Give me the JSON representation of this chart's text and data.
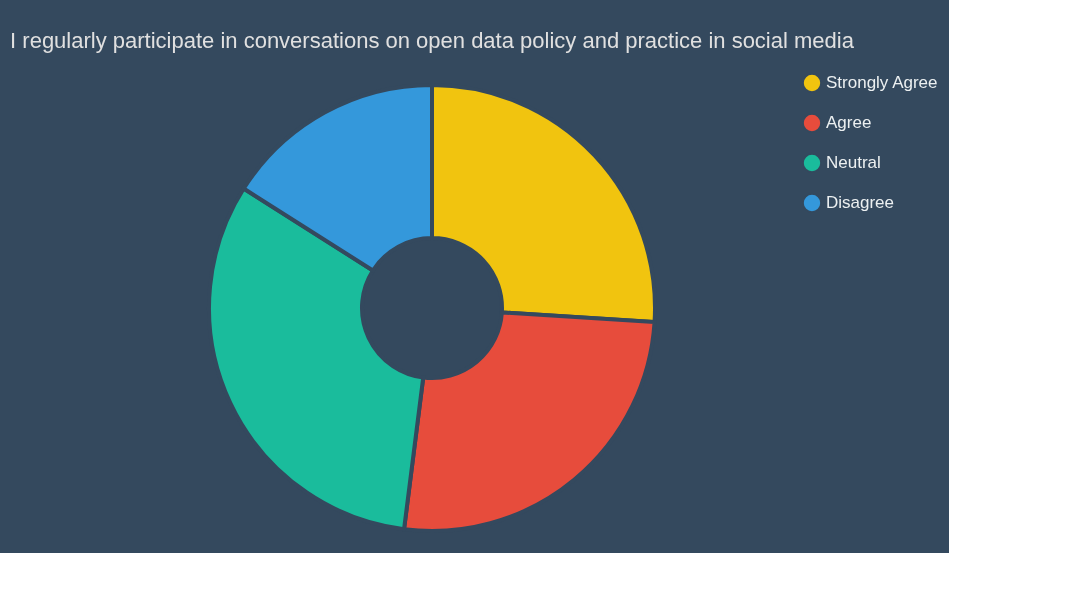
{
  "chart_data": {
    "type": "donut",
    "title": "I regularly participate in conversations on open data policy and practice in social media",
    "categories": [
      "Strongly Agree",
      "Agree",
      "Neutral",
      "Disagree"
    ],
    "values": [
      26,
      26,
      32,
      16
    ],
    "colors": [
      "#f1c40f",
      "#e74c3c",
      "#1abc9c",
      "#3498db"
    ],
    "legend": "right"
  }
}
